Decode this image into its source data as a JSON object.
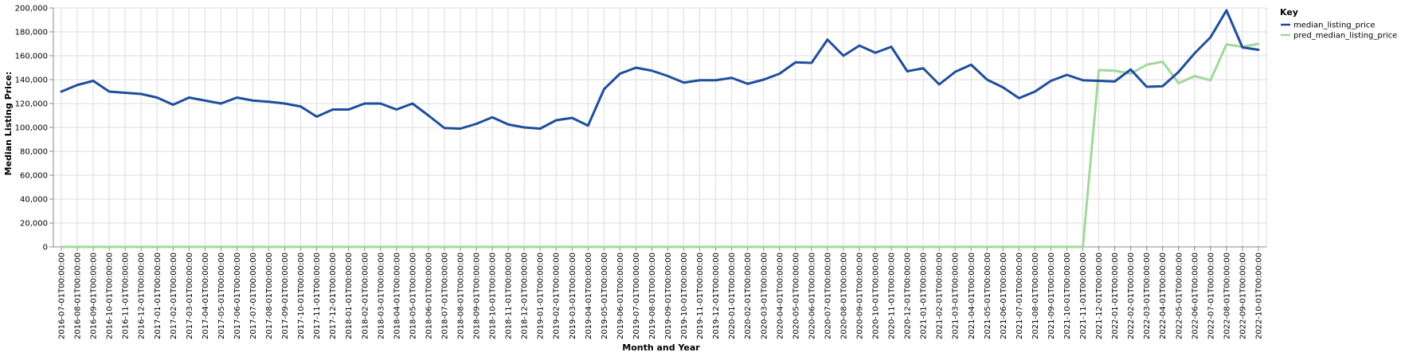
{
  "chart_data": {
    "type": "line",
    "xlabel": "Month and Year",
    "ylabel": "Median Listing Price:",
    "ylim": [
      0,
      200000
    ],
    "yticks": [
      "0",
      "20,000",
      "40,000",
      "60,000",
      "80,000",
      "100,000",
      "120,000",
      "140,000",
      "160,000",
      "180,000",
      "200,000"
    ],
    "grid": true,
    "legend": {
      "title": "Key",
      "placement": "top-right"
    },
    "categories": [
      "2016-07-01T00:00:00",
      "2016-08-01T00:00:00",
      "2016-09-01T00:00:00",
      "2016-10-01T00:00:00",
      "2016-11-01T00:00:00",
      "2016-12-01T00:00:00",
      "2017-01-01T00:00:00",
      "2017-02-01T00:00:00",
      "2017-03-01T00:00:00",
      "2017-04-01T00:00:00",
      "2017-05-01T00:00:00",
      "2017-06-01T00:00:00",
      "2017-07-01T00:00:00",
      "2017-08-01T00:00:00",
      "2017-09-01T00:00:00",
      "2017-10-01T00:00:00",
      "2017-11-01T00:00:00",
      "2017-12-01T00:00:00",
      "2018-01-01T00:00:00",
      "2018-02-01T00:00:00",
      "2018-03-01T00:00:00",
      "2018-04-01T00:00:00",
      "2018-05-01T00:00:00",
      "2018-06-01T00:00:00",
      "2018-07-01T00:00:00",
      "2018-08-01T00:00:00",
      "2018-09-01T00:00:00",
      "2018-10-01T00:00:00",
      "2018-11-01T00:00:00",
      "2018-12-01T00:00:00",
      "2019-01-01T00:00:00",
      "2019-02-01T00:00:00",
      "2019-03-01T00:00:00",
      "2019-04-01T00:00:00",
      "2019-05-01T00:00:00",
      "2019-06-01T00:00:00",
      "2019-07-01T00:00:00",
      "2019-08-01T00:00:00",
      "2019-09-01T00:00:00",
      "2019-10-01T00:00:00",
      "2019-11-01T00:00:00",
      "2019-12-01T00:00:00",
      "2020-01-01T00:00:00",
      "2020-02-01T00:00:00",
      "2020-03-01T00:00:00",
      "2020-04-01T00:00:00",
      "2020-05-01T00:00:00",
      "2020-06-01T00:00:00",
      "2020-07-01T00:00:00",
      "2020-08-01T00:00:00",
      "2020-09-01T00:00:00",
      "2020-10-01T00:00:00",
      "2020-11-01T00:00:00",
      "2020-12-01T00:00:00",
      "2021-01-01T00:00:00",
      "2021-02-01T00:00:00",
      "2021-03-01T00:00:00",
      "2021-04-01T00:00:00",
      "2021-05-01T00:00:00",
      "2021-06-01T00:00:00",
      "2021-07-01T00:00:00",
      "2021-08-01T00:00:00",
      "2021-09-01T00:00:00",
      "2021-10-01T00:00:00",
      "2021-11-01T00:00:00",
      "2021-12-01T00:00:00",
      "2022-01-01T00:00:00",
      "2022-02-01T00:00:00",
      "2022-03-01T00:00:00",
      "2022-04-01T00:00:00",
      "2022-05-01T00:00:00",
      "2022-06-01T00:00:00",
      "2022-07-01T00:00:00",
      "2022-08-01T00:00:00",
      "2022-09-01T00:00:00",
      "2022-10-01T00:00:00"
    ],
    "series": [
      {
        "name": "median_listing_price",
        "color": "#1f4e9c",
        "values": [
          130000,
          135500,
          139000,
          130000,
          129000,
          128000,
          125000,
          119000,
          125000,
          122500,
          120000,
          125000,
          122500,
          121500,
          120000,
          117500,
          109000,
          115000,
          115000,
          120000,
          120000,
          115000,
          120000,
          110000,
          99500,
          99000,
          103000,
          108500,
          102500,
          100000,
          99000,
          106000,
          108000,
          101500,
          132000,
          145000,
          150000,
          147500,
          143000,
          137500,
          139500,
          139500,
          141500,
          136500,
          140000,
          145000,
          154500,
          154000,
          173500,
          160000,
          168500,
          162500,
          167500,
          147000,
          149500,
          136000,
          146500,
          152500,
          140000,
          133500,
          124500,
          130000,
          139000,
          144000,
          139500,
          139000,
          138500,
          148500,
          134000,
          134500,
          146500,
          162000,
          175500,
          198000,
          167000,
          165000
        ]
      },
      {
        "name": "pred_median_listing_price",
        "color": "#a1d99b",
        "values": [
          0,
          0,
          0,
          0,
          0,
          0,
          0,
          0,
          0,
          0,
          0,
          0,
          0,
          0,
          0,
          0,
          0,
          0,
          0,
          0,
          0,
          0,
          0,
          0,
          0,
          0,
          0,
          0,
          0,
          0,
          0,
          0,
          0,
          0,
          0,
          0,
          0,
          0,
          0,
          0,
          0,
          0,
          0,
          0,
          0,
          0,
          0,
          0,
          0,
          0,
          0,
          0,
          0,
          0,
          0,
          0,
          0,
          0,
          0,
          0,
          0,
          0,
          0,
          0,
          0,
          148000,
          147500,
          145000,
          152500,
          155000,
          137000,
          143000,
          139500,
          169500,
          167500,
          170000
        ]
      }
    ]
  }
}
